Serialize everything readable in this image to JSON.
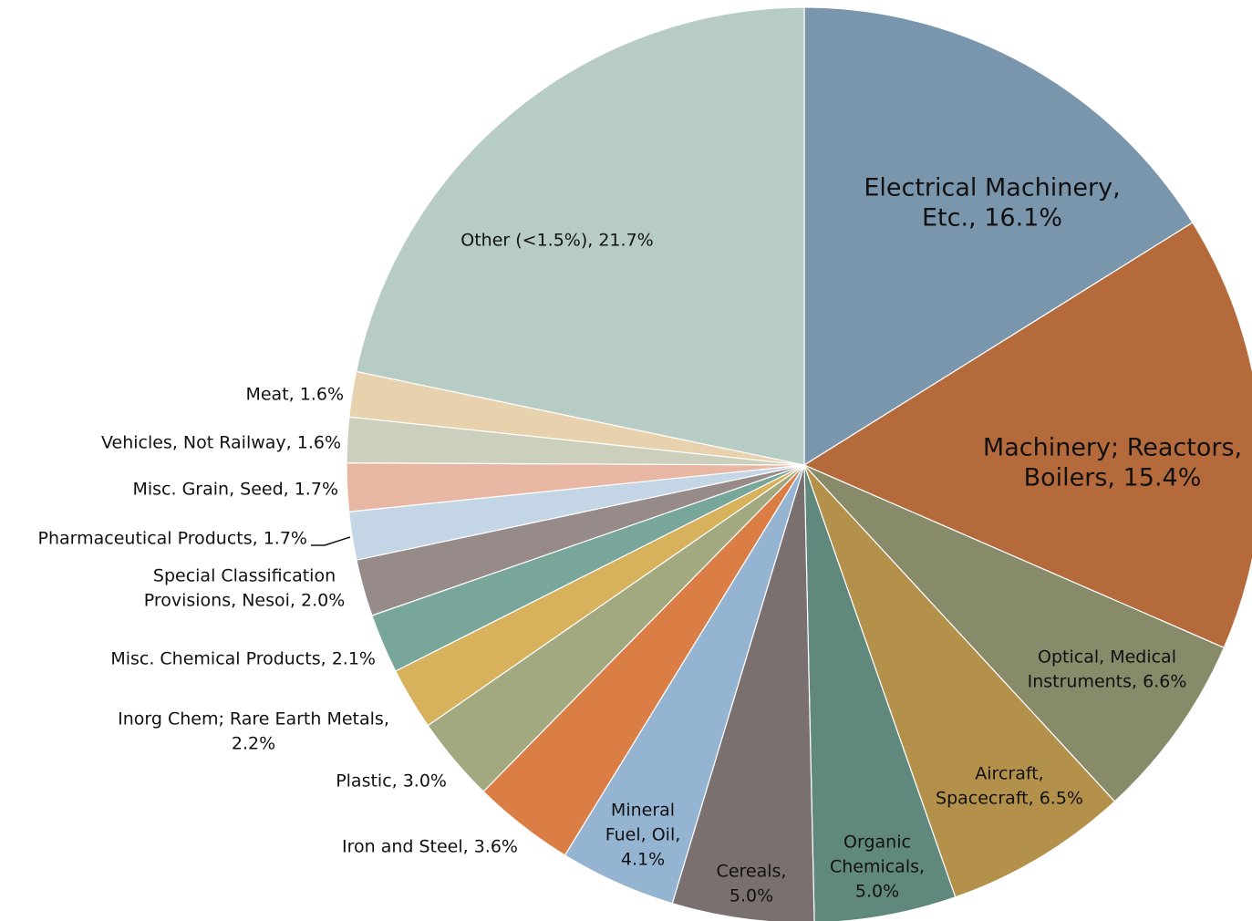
{
  "chart_data": {
    "type": "pie",
    "title": "",
    "slices": [
      {
        "name": "Electrical Machinery, Etc.",
        "value": 16.1,
        "label": [
          "Electrical Machinery,",
          "Etc., 16.1%"
        ],
        "color": "#7a96ac"
      },
      {
        "name": "Machinery; Reactors, Boilers",
        "value": 15.4,
        "label": [
          "Machinery; Reactors,",
          "Boilers, 15.4%"
        ],
        "color": "#b56a3b"
      },
      {
        "name": "Optical, Medical Instruments",
        "value": 6.6,
        "label": [
          "Optical, Medical",
          "Instruments, 6.6%"
        ],
        "color": "#878b6a"
      },
      {
        "name": "Aircraft, Spacecraft",
        "value": 6.5,
        "label": [
          "Aircraft,",
          "Spacecraft, 6.5%"
        ],
        "color": "#b4914b"
      },
      {
        "name": "Organic Chemicals",
        "value": 5.0,
        "label": [
          "Organic",
          "Chemicals,",
          "5.0%"
        ],
        "color": "#61887d"
      },
      {
        "name": "Cereals",
        "value": 5.0,
        "label": [
          "Cereals,",
          "5.0%"
        ],
        "color": "#7b7070"
      },
      {
        "name": "Mineral Fuel, Oil",
        "value": 4.1,
        "label": [
          "Mineral",
          "Fuel, Oil,",
          "4.1%"
        ],
        "color": "#95b4d2"
      },
      {
        "name": "Iron and Steel",
        "value": 3.6,
        "label": [
          "Iron and Steel, 3.6%"
        ],
        "color": "#db7e46"
      },
      {
        "name": "Plastic",
        "value": 3.0,
        "label": [
          "Plastic, 3.0%"
        ],
        "color": "#a2a980"
      },
      {
        "name": "Inorg Chem; Rare Earth Metals",
        "value": 2.2,
        "label": [
          "Inorg Chem; Rare Earth Metals,",
          "2.2%"
        ],
        "color": "#d7b15c"
      },
      {
        "name": "Misc. Chemical Products",
        "value": 2.1,
        "label": [
          "Misc. Chemical Products, 2.1%"
        ],
        "color": "#79a69b"
      },
      {
        "name": "Special Classification Provisions, Nesoi",
        "value": 2.0,
        "label": [
          "Special Classification",
          "Provisions, Nesoi, 2.0%"
        ],
        "color": "#968b89"
      },
      {
        "name": "Pharmaceutical Products",
        "value": 1.7,
        "label": [
          "Pharmaceutical Products, 1.7%"
        ],
        "color": "#c4d5e6"
      },
      {
        "name": "Misc. Grain, Seed",
        "value": 1.7,
        "label": [
          "Misc. Grain, Seed, 1.7%"
        ],
        "color": "#e8b7a4"
      },
      {
        "name": "Vehicles, Not Railway",
        "value": 1.6,
        "label": [
          "Vehicles, Not Railway, 1.6%"
        ],
        "color": "#cccfbc"
      },
      {
        "name": "Meat",
        "value": 1.6,
        "label": [
          "Meat, 1.6%"
        ],
        "color": "#e8d2ae"
      },
      {
        "name": "Other (<1.5%)",
        "value": 21.7,
        "label": [
          "Other (<1.5%), 21.7%"
        ],
        "color": "#b8ccc6"
      }
    ]
  }
}
